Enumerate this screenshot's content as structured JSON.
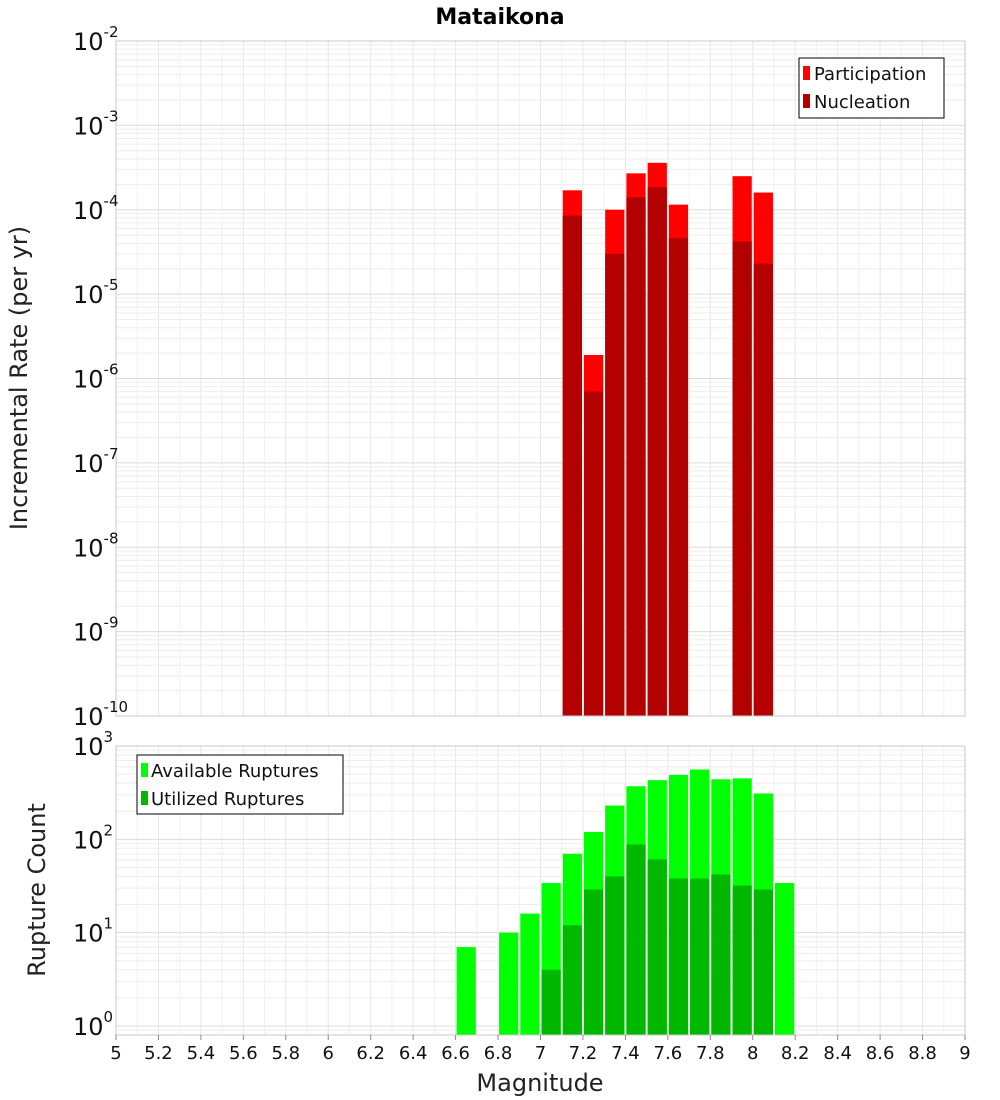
{
  "chart_data": [
    {
      "type": "bar",
      "title": "Mataikona",
      "ylabel": "Incremental Rate (per yr)",
      "xlim": [
        5,
        9
      ],
      "ylim": [
        1e-10,
        0.01
      ],
      "y_scale": "log",
      "y_ticks": [
        {
          "base": "10",
          "exp": "-10",
          "value": 1e-10
        },
        {
          "base": "10",
          "exp": "-9",
          "value": 1e-09
        },
        {
          "base": "10",
          "exp": "-8",
          "value": 1e-08
        },
        {
          "base": "10",
          "exp": "-7",
          "value": 1e-07
        },
        {
          "base": "10",
          "exp": "-6",
          "value": 1e-06
        },
        {
          "base": "10",
          "exp": "-5",
          "value": 1e-05
        },
        {
          "base": "10",
          "exp": "-4",
          "value": 0.0001
        },
        {
          "base": "10",
          "exp": "-3",
          "value": 0.001
        },
        {
          "base": "10",
          "exp": "-2",
          "value": 0.01
        }
      ],
      "grid": true,
      "legend_position": "top-right",
      "series": [
        {
          "name": "Participation",
          "color": "#ff0000",
          "x": [
            7.15,
            7.25,
            7.35,
            7.45,
            7.55,
            7.65,
            7.95,
            8.05
          ],
          "values": [
            0.00017,
            1.9e-06,
            0.0001,
            0.00027,
            0.00036,
            0.000115,
            0.00025,
            0.00016
          ]
        },
        {
          "name": "Nucleation",
          "color": "#b30000",
          "x": [
            7.15,
            7.25,
            7.35,
            7.45,
            7.55,
            7.65,
            7.95,
            8.05
          ],
          "values": [
            8.5e-05,
            7e-07,
            3e-05,
            0.00014,
            0.000185,
            4.6e-05,
            4.2e-05,
            2.3e-05
          ]
        }
      ]
    },
    {
      "type": "bar",
      "xlabel": "Magnitude",
      "ylabel": "Rupture Count",
      "xlim": [
        5,
        9
      ],
      "ylim": [
        0.8,
        1000
      ],
      "y_scale": "log",
      "y_ticks": [
        {
          "base": "10",
          "exp": "0",
          "value": 1
        },
        {
          "base": "10",
          "exp": "1",
          "value": 10
        },
        {
          "base": "10",
          "exp": "2",
          "value": 100
        },
        {
          "base": "10",
          "exp": "3",
          "value": 1000
        }
      ],
      "x_ticks": [
        "5",
        "5.2",
        "5.4",
        "5.6",
        "5.8",
        "6",
        "6.2",
        "6.4",
        "6.6",
        "6.8",
        "7",
        "7.2",
        "7.4",
        "7.6",
        "7.8",
        "8",
        "8.2",
        "8.4",
        "8.6",
        "8.8",
        "9"
      ],
      "grid": true,
      "legend_position": "top-left",
      "series": [
        {
          "name": "Available Ruptures",
          "color": "#00ff00",
          "x": [
            6.65,
            6.85,
            6.95,
            7.05,
            7.15,
            7.25,
            7.35,
            7.45,
            7.55,
            7.65,
            7.75,
            7.85,
            7.95,
            8.05,
            8.15
          ],
          "values": [
            7,
            10,
            16,
            34,
            70,
            120,
            230,
            370,
            430,
            490,
            560,
            440,
            450,
            310,
            34
          ]
        },
        {
          "name": "Utilized Ruptures",
          "color": "#00b800",
          "x": [
            7.05,
            7.15,
            7.25,
            7.35,
            7.45,
            7.55,
            7.65,
            7.75,
            7.85,
            7.95,
            8.05
          ],
          "values": [
            4,
            12,
            29,
            40,
            88,
            61,
            38,
            38,
            42,
            32,
            29
          ]
        }
      ]
    }
  ]
}
